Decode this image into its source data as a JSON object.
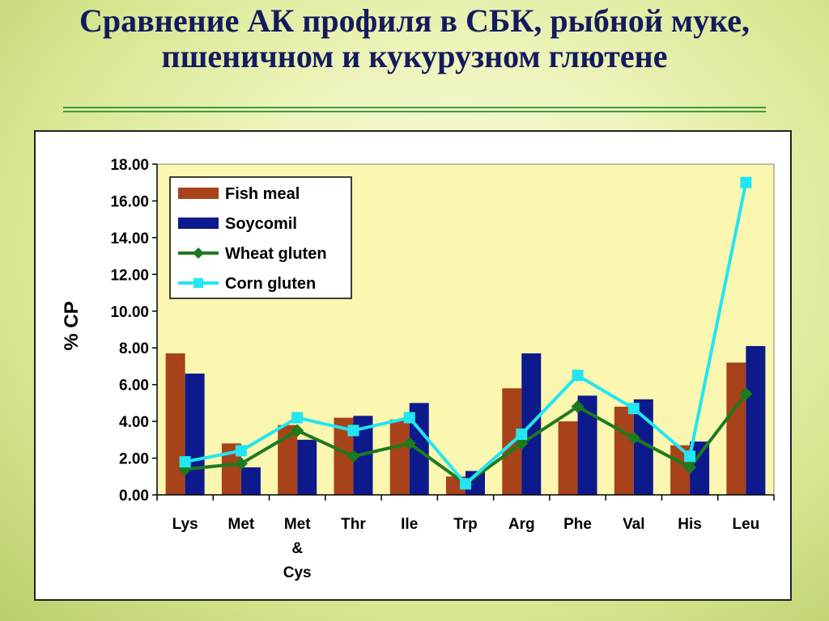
{
  "slide": {
    "title_line1": "Сравнение АК профиля в СБК, рыбной муке,",
    "title_line2": "пшеничном и кукурузном глютене"
  },
  "colors": {
    "fish_meal": "#a8421a",
    "soycomil": "#0d1a8c",
    "wheat_gluten": "#1e7a1e",
    "corn_gluten": "#22e6f2",
    "plot_background": "#fbf6b0"
  },
  "chart_data": {
    "type": "bar",
    "overlay_type": "line",
    "title": "",
    "xlabel": "",
    "ylabel": "% CP",
    "ylim": [
      0,
      18
    ],
    "ytick_step": 2,
    "ytick_labels": [
      "0.00",
      "2.00",
      "4.00",
      "6.00",
      "8.00",
      "10.00",
      "12.00",
      "14.00",
      "16.00",
      "18.00"
    ],
    "grid": false,
    "legend_position": "top-left",
    "categories": [
      "Lys",
      "Met",
      "Met & Cys",
      "Thr",
      "Ile",
      "Trp",
      "Arg",
      "Phe",
      "Val",
      "His",
      "Leu"
    ],
    "category_label_lines": [
      [
        "Lys"
      ],
      [
        "Met"
      ],
      [
        "Met",
        "&",
        "Cys"
      ],
      [
        "Thr"
      ],
      [
        "Ile"
      ],
      [
        "Trp"
      ],
      [
        "Arg"
      ],
      [
        "Phe"
      ],
      [
        "Val"
      ],
      [
        "His"
      ],
      [
        "Leu"
      ]
    ],
    "series": [
      {
        "name": "Fish meal",
        "type": "bar",
        "color_key": "fish_meal",
        "values": [
          7.7,
          2.8,
          3.8,
          4.2,
          4.1,
          1.0,
          5.8,
          4.0,
          4.8,
          2.7,
          7.2
        ]
      },
      {
        "name": "Soycomil",
        "type": "bar",
        "color_key": "soycomil",
        "values": [
          6.6,
          1.5,
          3.0,
          4.3,
          5.0,
          1.3,
          7.7,
          5.4,
          5.2,
          2.9,
          8.1
        ]
      },
      {
        "name": "Wheat gluten",
        "type": "line",
        "marker": "diamond",
        "color_key": "wheat_gluten",
        "values": [
          1.4,
          1.7,
          3.5,
          2.1,
          2.8,
          0.6,
          2.8,
          4.8,
          3.1,
          1.5,
          5.5
        ]
      },
      {
        "name": "Corn gluten",
        "type": "line",
        "marker": "square",
        "color_key": "corn_gluten",
        "values": [
          1.8,
          2.4,
          4.2,
          3.5,
          4.2,
          0.6,
          3.3,
          6.5,
          4.7,
          2.1,
          17.0
        ]
      }
    ]
  }
}
